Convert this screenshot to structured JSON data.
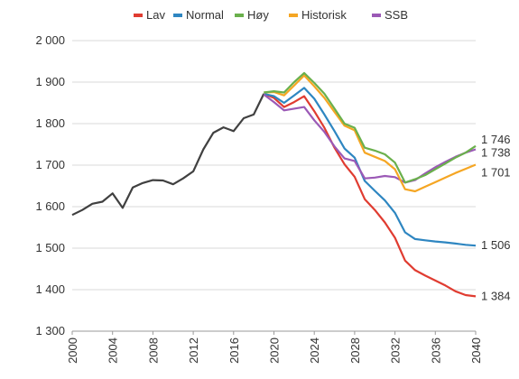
{
  "chart_data": {
    "type": "line",
    "title": "",
    "xlabel": "",
    "ylabel": "",
    "xlim": [
      2000,
      2040
    ],
    "ylim": [
      1300,
      2000
    ],
    "grid": "horizontal",
    "legend_position": "top",
    "y_ticks": [
      {
        "value": 1300,
        "label": "1 300"
      },
      {
        "value": 1400,
        "label": "1 400"
      },
      {
        "value": 1500,
        "label": "1 500"
      },
      {
        "value": 1600,
        "label": "1 600"
      },
      {
        "value": 1700,
        "label": "1 700"
      },
      {
        "value": 1800,
        "label": "1 800"
      },
      {
        "value": 1900,
        "label": "1 900"
      },
      {
        "value": 2000,
        "label": "2 000"
      }
    ],
    "x_ticks": [
      {
        "value": 2000,
        "label": "2000"
      },
      {
        "value": 2004,
        "label": "2004"
      },
      {
        "value": 2008,
        "label": "2008"
      },
      {
        "value": 2012,
        "label": "2012"
      },
      {
        "value": 2016,
        "label": "2016"
      },
      {
        "value": 2020,
        "label": "2020"
      },
      {
        "value": 2024,
        "label": "2024"
      },
      {
        "value": 2028,
        "label": "2028"
      },
      {
        "value": 2032,
        "label": "2032"
      },
      {
        "value": 2036,
        "label": "2036"
      },
      {
        "value": 2040,
        "label": "2040"
      }
    ],
    "history": {
      "color": "#404040",
      "x": [
        2000,
        2001,
        2002,
        2003,
        2004,
        2005,
        2006,
        2007,
        2008,
        2009,
        2010,
        2011,
        2012,
        2013,
        2014,
        2015,
        2016,
        2017,
        2018,
        2019
      ],
      "y": [
        1580,
        1592,
        1607,
        1612,
        1632,
        1597,
        1646,
        1657,
        1664,
        1663,
        1654,
        1668,
        1685,
        1738,
        1778,
        1791,
        1782,
        1813,
        1822,
        1872
      ]
    },
    "series": [
      {
        "name": "Lav",
        "color": "#e03c31",
        "x": [
          2019,
          2020,
          2021,
          2022,
          2023,
          2024,
          2025,
          2026,
          2027,
          2028,
          2029,
          2030,
          2031,
          2032,
          2033,
          2034,
          2035,
          2036,
          2037,
          2038,
          2039,
          2040
        ],
        "y": [
          1872,
          1862,
          1840,
          1852,
          1866,
          1830,
          1790,
          1742,
          1702,
          1672,
          1618,
          1592,
          1562,
          1525,
          1470,
          1447,
          1434,
          1422,
          1410,
          1396,
          1387,
          1384
        ],
        "end_label": "1 384"
      },
      {
        "name": "Normal",
        "color": "#2e86c1",
        "x": [
          2019,
          2020,
          2021,
          2022,
          2023,
          2024,
          2025,
          2026,
          2027,
          2028,
          2029,
          2030,
          2031,
          2032,
          2033,
          2034,
          2035,
          2036,
          2037,
          2038,
          2039,
          2040
        ],
        "y": [
          1872,
          1866,
          1850,
          1868,
          1886,
          1860,
          1822,
          1782,
          1740,
          1718,
          1662,
          1638,
          1615,
          1585,
          1538,
          1522,
          1519,
          1516,
          1514,
          1511,
          1508,
          1506
        ],
        "end_label": "1 506"
      },
      {
        "name": "Høy",
        "color": "#6ab04c",
        "x": [
          2019,
          2020,
          2021,
          2022,
          2023,
          2024,
          2025,
          2026,
          2027,
          2028,
          2029,
          2030,
          2031,
          2032,
          2033,
          2034,
          2035,
          2036,
          2037,
          2038,
          2039,
          2040
        ],
        "y": [
          1875,
          1878,
          1875,
          1900,
          1922,
          1898,
          1872,
          1836,
          1800,
          1790,
          1742,
          1735,
          1726,
          1706,
          1658,
          1666,
          1676,
          1690,
          1704,
          1718,
          1730,
          1746
        ],
        "end_label": "1 746"
      },
      {
        "name": "Historisk",
        "color": "#f5a623",
        "x": [
          2019,
          2020,
          2021,
          2022,
          2023,
          2024,
          2025,
          2026,
          2027,
          2028,
          2029,
          2030,
          2031,
          2032,
          2033,
          2034,
          2035,
          2036,
          2037,
          2038,
          2039,
          2040
        ],
        "y": [
          1875,
          1876,
          1868,
          1892,
          1916,
          1890,
          1862,
          1828,
          1795,
          1784,
          1730,
          1720,
          1710,
          1690,
          1642,
          1637,
          1648,
          1659,
          1670,
          1681,
          1691,
          1701
        ],
        "end_label": "1 701"
      },
      {
        "name": "SSB",
        "color": "#9b59b6",
        "x": [
          2019,
          2020,
          2021,
          2022,
          2023,
          2024,
          2025,
          2026,
          2027,
          2028,
          2029,
          2030,
          2031,
          2032,
          2033,
          2034,
          2035,
          2036,
          2037,
          2038,
          2039,
          2040
        ],
        "y": [
          1870,
          1852,
          1832,
          1836,
          1840,
          1808,
          1780,
          1745,
          1716,
          1710,
          1668,
          1670,
          1674,
          1671,
          1658,
          1664,
          1680,
          1695,
          1708,
          1720,
          1730,
          1738
        ],
        "end_label": "1 738"
      }
    ]
  }
}
